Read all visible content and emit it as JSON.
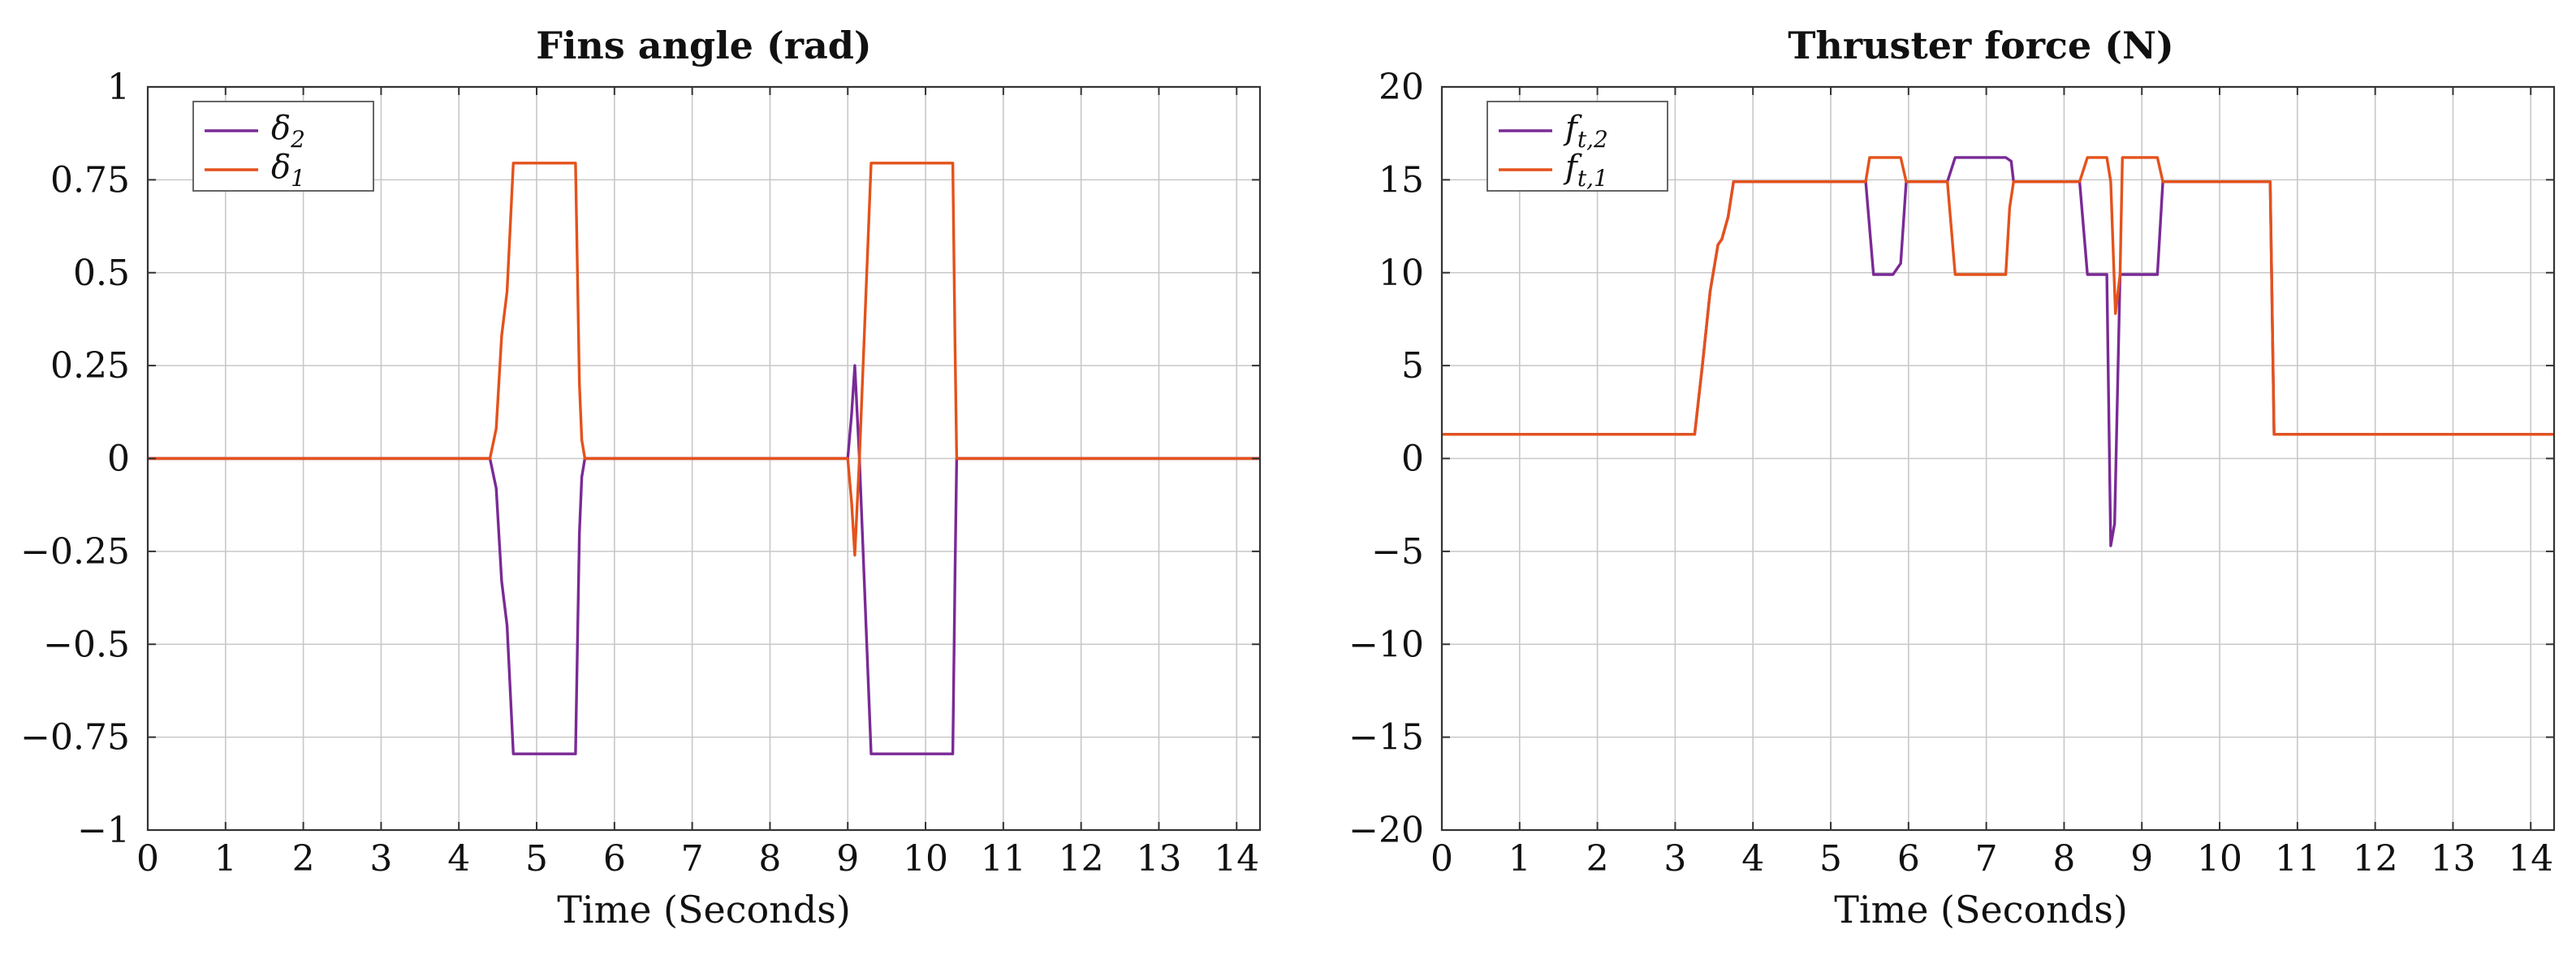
{
  "chart_data": [
    {
      "type": "line",
      "title": "Fins angle (rad)",
      "xlabel": "Time (Seconds)",
      "ylabel": "",
      "xlim": [
        0,
        14.3
      ],
      "ylim": [
        -1,
        1
      ],
      "grid": true,
      "legend_position": "top-left",
      "x_tick_labels": [
        "0",
        "1",
        "2",
        "3",
        "4",
        "5",
        "6",
        "7",
        "8",
        "9",
        "10",
        "11",
        "12",
        "13",
        "14"
      ],
      "y_tick_labels": [
        "1",
        "0.75",
        "0.5",
        "0.25",
        "0",
        "−0.25",
        "−0.5",
        "−0.75",
        "−1"
      ],
      "y_tick_values": [
        1,
        0.75,
        0.5,
        0.25,
        0,
        -0.25,
        -0.5,
        -0.75,
        -1
      ],
      "series": [
        {
          "name": "δ2",
          "legend_main": "δ",
          "legend_sub": "2",
          "color": "#7a2a96",
          "x": [
            0,
            4.4,
            4.48,
            4.55,
            4.62,
            4.7,
            5.5,
            5.55,
            5.58,
            5.62,
            9.0,
            9.05,
            9.09,
            9.15,
            9.3,
            10.35,
            10.38,
            10.4,
            14.3
          ],
          "y": [
            0,
            0,
            -0.08,
            -0.33,
            -0.45,
            -0.795,
            -0.795,
            -0.2,
            -0.05,
            0,
            0,
            0.12,
            0.25,
            0,
            -0.795,
            -0.795,
            -0.3,
            0,
            0
          ]
        },
        {
          "name": "δ1",
          "legend_main": "δ",
          "legend_sub": "1",
          "color": "#e4521b",
          "x": [
            0,
            4.4,
            4.48,
            4.55,
            4.62,
            4.7,
            5.5,
            5.55,
            5.58,
            5.62,
            9.0,
            9.05,
            9.09,
            9.15,
            9.3,
            10.35,
            10.38,
            10.4,
            14.3
          ],
          "y": [
            0,
            0,
            0.08,
            0.33,
            0.45,
            0.795,
            0.795,
            0.2,
            0.05,
            0,
            0,
            -0.12,
            -0.26,
            0,
            0.795,
            0.795,
            0.3,
            0,
            0
          ]
        }
      ]
    },
    {
      "type": "line",
      "title": "Thruster force (N)",
      "xlabel": "Time (Seconds)",
      "ylabel": "",
      "xlim": [
        0,
        14.3
      ],
      "ylim": [
        -20,
        20
      ],
      "grid": true,
      "legend_position": "top-left",
      "x_tick_labels": [
        "0",
        "1",
        "2",
        "3",
        "4",
        "5",
        "6",
        "7",
        "8",
        "9",
        "10",
        "11",
        "12",
        "13",
        "14"
      ],
      "y_tick_labels": [
        "20",
        "15",
        "10",
        "5",
        "0",
        "−5",
        "−10",
        "−15",
        "−20"
      ],
      "y_tick_values": [
        20,
        15,
        10,
        5,
        0,
        -5,
        -10,
        -15,
        -20
      ],
      "series": [
        {
          "name": "ft,2",
          "legend_main": "f",
          "legend_sub": "t,2",
          "color": "#7a2a96",
          "x": [
            0,
            3.25,
            3.35,
            3.45,
            3.55,
            3.6,
            3.68,
            3.75,
            5.45,
            5.55,
            5.8,
            5.9,
            5.97,
            6.5,
            6.6,
            7.25,
            7.32,
            7.35,
            8.2,
            8.3,
            8.55,
            8.6,
            8.65,
            8.72,
            8.8,
            9.2,
            9.27,
            10.65,
            10.7,
            14.3
          ],
          "y": [
            1.3,
            1.3,
            5,
            9,
            11.5,
            11.8,
            13,
            14.9,
            14.9,
            9.9,
            9.9,
            10.5,
            14.9,
            14.9,
            16.2,
            16.2,
            16,
            14.9,
            14.9,
            9.9,
            9.9,
            -4.7,
            -3.5,
            9.9,
            9.9,
            9.9,
            14.9,
            14.9,
            1.3,
            1.3
          ]
        },
        {
          "name": "ft,1",
          "legend_main": "f",
          "legend_sub": "t,1",
          "color": "#e4521b",
          "x": [
            0,
            3.25,
            3.35,
            3.45,
            3.55,
            3.6,
            3.68,
            3.75,
            5.45,
            5.5,
            5.9,
            5.97,
            6.5,
            6.6,
            7.25,
            7.3,
            7.35,
            8.2,
            8.3,
            8.55,
            8.6,
            8.66,
            8.72,
            8.75,
            9.2,
            9.27,
            10.65,
            10.7,
            14.3
          ],
          "y": [
            1.3,
            1.3,
            5,
            9,
            11.5,
            11.8,
            13,
            14.9,
            14.9,
            16.2,
            16.2,
            14.9,
            14.9,
            9.9,
            9.9,
            13.5,
            14.9,
            14.9,
            16.2,
            16.2,
            14.9,
            7.8,
            9.9,
            16.2,
            16.2,
            14.9,
            14.9,
            1.3,
            1.3
          ]
        }
      ]
    }
  ]
}
